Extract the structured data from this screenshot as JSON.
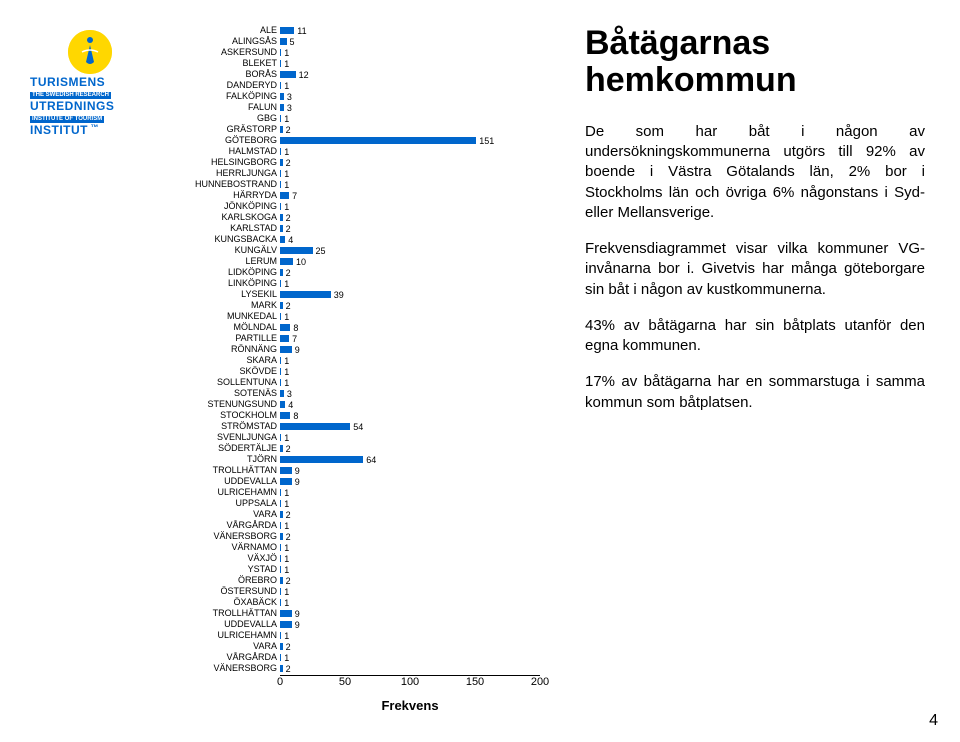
{
  "logo": {
    "main": "TURISMENS",
    "sub1": "THE SWEDISH RESEARCH",
    "line2": "UTREDNINGS",
    "sub2": "INSTITUTE OF TOURISM",
    "line3": "INSTITUT",
    "tm": "™",
    "circle_color": "#ffd700",
    "text_color": "#0066cc"
  },
  "chart": {
    "type": "bar",
    "orientation": "horizontal",
    "bar_color": "#0066cc",
    "background_color": "#ffffff",
    "label_fontsize": 9,
    "value_fontsize": 9,
    "xmax": 200,
    "xtick_step": 50,
    "xticks": [
      0,
      50,
      100,
      150,
      200
    ],
    "xlabel": "Frekvens",
    "categories": [
      "ALE",
      "ALINGSÅS",
      "ASKERSUND",
      "BLEKET",
      "BORÅS",
      "DANDERYD",
      "FALKÖPING",
      "FALUN",
      "GBG",
      "GRÄSTORP",
      "GÖTEBORG",
      "HALMSTAD",
      "HELSINGBORG",
      "HERRLJUNGA",
      "HUNNEBOSTRAND",
      "HÄRRYDA",
      "JÖNKÖPING",
      "KARLSKOGA",
      "KARLSTAD",
      "KUNGSBACKA",
      "KUNGÄLV",
      "LERUM",
      "LIDKÖPING",
      "LINKÖPING",
      "LYSEKIL",
      "MARK",
      "MUNKEDAL",
      "MÖLNDAL",
      "PARTILLE",
      "RÖNNÄNG",
      "SKARA",
      "SKÖVDE",
      "SOLLENTUNA",
      "SOTENÄS",
      "STENUNGSUND",
      "STOCKHOLM",
      "STRÖMSTAD",
      "SVENLJUNGA",
      "SÖDERTÄLJE",
      "TJÖRN",
      "TROLLHÄTTAN",
      "UDDEVALLA",
      "ULRICEHAMN",
      "UPPSALA",
      "VARA",
      "VÅRGÅRDA",
      "VÄNERSBORG",
      "VÄRNAMO",
      "VÄXJÖ",
      "YSTAD",
      "ÖREBRO",
      "ÖSTERSUND",
      "ÖXABÄCK",
      "TROLLHÄTTAN",
      "UDDEVALLA",
      "ULRICEHAMN",
      "VARA",
      "VÅRGÅRDA",
      "VÄNERSBORG"
    ],
    "values": [
      11,
      5,
      1,
      1,
      12,
      1,
      3,
      3,
      1,
      2,
      151,
      1,
      2,
      1,
      1,
      7,
      1,
      2,
      2,
      4,
      25,
      10,
      2,
      1,
      39,
      2,
      1,
      8,
      7,
      9,
      1,
      1,
      1,
      3,
      4,
      8,
      54,
      1,
      2,
      64,
      9,
      9,
      1,
      1,
      2,
      1,
      2,
      1,
      1,
      1,
      2,
      1,
      1,
      9,
      9,
      1,
      2,
      1,
      2
    ]
  },
  "text": {
    "title": "Båtägarnas hemkommun",
    "p1": "De som har båt i någon av undersökningskommunerna utgörs till 92% av boende i Västra Götalands län, 2% bor i Stockholms län och övriga 6% någonstans i Syd- eller Mellansverige.",
    "p2": "Frekvensdiagrammet visar vilka kommuner VG-invånarna bor i. Givetvis har många göteborgare sin båt i någon av kustkommunerna.",
    "p3": "43% av båtägarna har sin båtplats utanför den egna kommunen.",
    "p4": "17% av båtägarna har en sommarstuga i samma kommun som båtplatsen."
  },
  "page": "4"
}
